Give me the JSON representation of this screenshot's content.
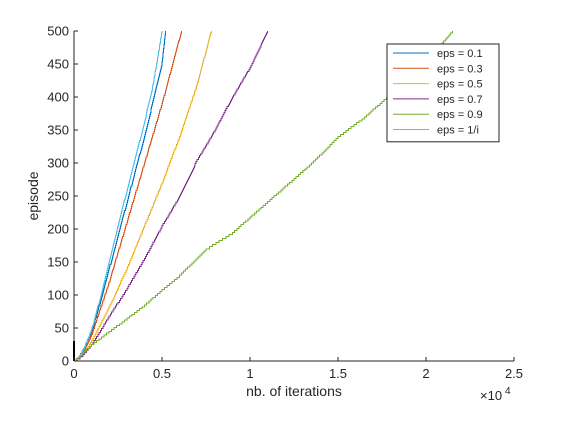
{
  "chart_data": {
    "type": "line",
    "title": "",
    "xlabel": "nb. of iterations",
    "ylabel": "episode",
    "x_exponent_label": "×10",
    "x_exponent_power": "4",
    "xlim": [
      0,
      25000
    ],
    "ylim": [
      0,
      500
    ],
    "x_ticks": [
      0,
      5000,
      10000,
      15000,
      20000,
      25000
    ],
    "x_tick_labels": [
      "0",
      "0.5",
      "1",
      "1.5",
      "2",
      "2.5"
    ],
    "y_ticks": [
      0,
      50,
      100,
      150,
      200,
      250,
      300,
      350,
      400,
      450,
      500
    ],
    "y_tick_labels": [
      "0",
      "50",
      "100",
      "150",
      "200",
      "250",
      "300",
      "350",
      "400",
      "450",
      "500"
    ],
    "grid": false,
    "legend_position": "top-right",
    "series": [
      {
        "name": "eps = 0.1",
        "color": "#0072BD",
        "x": [
          0,
          300,
          600,
          1000,
          1500,
          2000,
          2500,
          3000,
          3500,
          4000,
          4500,
          5000,
          5200
        ],
        "y": [
          0,
          8,
          20,
          45,
          90,
          140,
          190,
          240,
          290,
          340,
          395,
          450,
          500
        ]
      },
      {
        "name": "eps = 0.3",
        "color": "#D95319",
        "x": [
          0,
          300,
          600,
          1000,
          1500,
          2000,
          2500,
          3000,
          3500,
          4000,
          4500,
          5000,
          5500,
          6100
        ],
        "y": [
          0,
          7,
          18,
          40,
          80,
          120,
          165,
          210,
          255,
          300,
          345,
          390,
          440,
          500
        ]
      },
      {
        "name": "eps = 0.5",
        "color": "#EDB120",
        "x": [
          0,
          400,
          800,
          1200,
          2000,
          3000,
          4000,
          5000,
          6000,
          7000,
          7800
        ],
        "y": [
          0,
          8,
          22,
          40,
          82,
          140,
          205,
          270,
          340,
          420,
          500
        ]
      },
      {
        "name": "eps = 0.7",
        "color": "#7E2F8E",
        "x": [
          0,
          500,
          1000,
          2000,
          3000,
          4000,
          5000,
          6000,
          7000,
          8000,
          9000,
          10000,
          11000
        ],
        "y": [
          0,
          10,
          25,
          68,
          110,
          155,
          205,
          250,
          305,
          350,
          400,
          445,
          500
        ]
      },
      {
        "name": "eps = 0.9",
        "color": "#77AC30",
        "x": [
          0,
          1000,
          2000,
          3000,
          4000,
          5000,
          6000,
          7500,
          9000,
          10500,
          12000,
          13500,
          15000,
          16500,
          18000,
          20000,
          21500
        ],
        "y": [
          0,
          25,
          45,
          65,
          85,
          108,
          130,
          170,
          195,
          230,
          265,
          300,
          340,
          370,
          405,
          455,
          500
        ]
      },
      {
        "name": "eps = 1/i",
        "color": "#4DBEEE",
        "x": [
          0,
          300,
          600,
          1000,
          1500,
          2000,
          2500,
          3000,
          3500,
          4000,
          4500,
          5000
        ],
        "y": [
          0,
          8,
          22,
          48,
          97,
          150,
          205,
          258,
          310,
          362,
          420,
          500
        ]
      }
    ]
  }
}
